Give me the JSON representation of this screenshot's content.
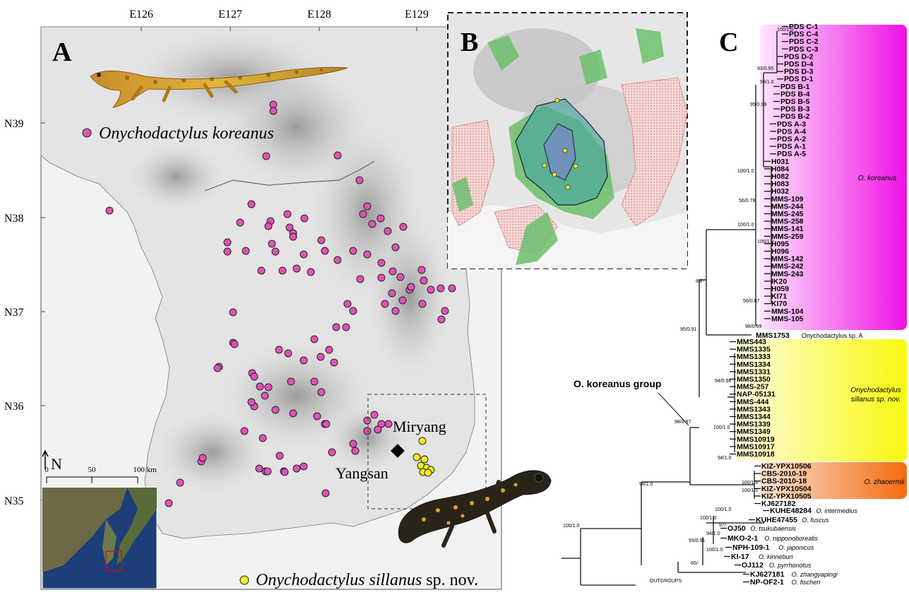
{
  "panelA": {
    "label": "A",
    "lon_ticks": [
      "E126",
      "E127",
      "E128",
      "E129"
    ],
    "lat_ticks": [
      "N39",
      "N38",
      "N37",
      "N36",
      "N35"
    ],
    "legend_koreanus": "Onychodactylus koreanus",
    "legend_sillanus_name": "Onychodactylus sillanus",
    "legend_sillanus_suffix": " sp. nov.",
    "place_miryang": "Miryang",
    "place_yangsan": "Yangsan",
    "north_label": "N",
    "scale_labels": [
      "0",
      "50",
      "100 km"
    ],
    "colors": {
      "koreanus": "#e052b8",
      "sillanus": "#f4ee22",
      "salamander_top": "#d9a526",
      "salamander_bottom": "#2a2418"
    }
  },
  "panelB": {
    "label": "B"
  },
  "panelC": {
    "label": "C",
    "group_label": "O. koreanus group",
    "clade_labels": {
      "koreanus": "O. koreanus",
      "sillanus_1": "Onychodactylus",
      "sillanus_2": "sillanus sp. nov.",
      "zhaoermii": "O. zhaoermii"
    },
    "clade_colors": {
      "koreanus": "#f011e6",
      "sillanus": "#f8f810",
      "zhaoermii": "#f36a10"
    },
    "tips_koreanus": [
      "PDS C-1",
      "PDS C-4",
      "PDS C-2",
      "PDS C-3",
      "PDS D-2",
      "PDS D-4",
      "PDS D-3",
      "PDS D-1",
      "PDS B-1",
      "PDS B-4",
      "PDS B-5",
      "PDS B-3",
      "PDS B-2",
      "PDS A-3",
      "PDS A-4",
      "PDS A-2",
      "PDS A-1",
      "PDS A-5",
      "H031",
      "H084",
      "H082",
      "H083",
      "H032",
      "MMS-109",
      "MMS-244",
      "MMS-245",
      "MMS-258",
      "MMS-141",
      "MMS-259",
      "H095",
      "H096",
      "MMS-142",
      "MMS-242",
      "MMS-243",
      "IK20",
      "H059",
      "KI71",
      "KI70",
      "MMS-104",
      "MMS-105"
    ],
    "tip_spA": "MMS1753",
    "tip_spA_name": "Onychodactylus sp. A",
    "tips_sillanus": [
      "MMS443",
      "MMS1335",
      "MMS1333",
      "MMS1334",
      "MMS1331",
      "MMS1350",
      "MMS-257",
      "NAP-05131",
      "MMS-444",
      "MMS1343",
      "MMS1344",
      "MMS1339",
      "MMS1349",
      "MMS10919",
      "MMS10917",
      "MMS10918"
    ],
    "tips_zhaoermii": [
      "KIZ-YPX10506",
      "CBS-2010-19",
      "CBS-2010-18",
      "KIZ-YPX10504",
      "KIZ-YPX10505",
      "KJ627182"
    ],
    "tips_others": [
      {
        "id": "KUHE48284",
        "sp": "O. intermedius"
      },
      {
        "id": "KUHE47455",
        "sp": "O. fuscus"
      },
      {
        "id": "OJ50",
        "sp": "O. tsukubaensis"
      },
      {
        "id": "MKO-2-1",
        "sp": "O. nipponoborealis"
      },
      {
        "id": "NPH-109-1",
        "sp": "O. japonicus"
      },
      {
        "id": "KI-17",
        "sp": "O. kinneburi"
      },
      {
        "id": "OJ112",
        "sp": "O. pyrrhonotus"
      },
      {
        "id": "KJ627181",
        "sp": "O. zhangyapingi"
      },
      {
        "id": "NP-OF2-1",
        "sp": "O. fischeri"
      }
    ],
    "outgroups": "OUTGROUPS",
    "supports": {
      "s1": "100/1.0",
      "s2": "93/0.95",
      "s3": "99/1.0",
      "s4": "95/0.99",
      "s5": "100/1.0",
      "s6": "56/0.78",
      "s7": "100/1.0",
      "s8": "100/1.0",
      "s9": "56/0.87",
      "s10": "98/0.99",
      "s11": "89/-",
      "s12": "95/0.91",
      "s13": "94/0.96",
      "s14": "98/0.97",
      "s15": "100/1.0",
      "s16": "94/1.0",
      "s17": "100/1.0",
      "s18": "100/1.0",
      "s19": "98/1.0",
      "s20": "100/1.0",
      "s21": "100/1.0",
      "s22": "97/-",
      "s23": "94/1.0",
      "s24": "93/0.91",
      "s25": "100/1.0",
      "s26": "65/-"
    }
  }
}
